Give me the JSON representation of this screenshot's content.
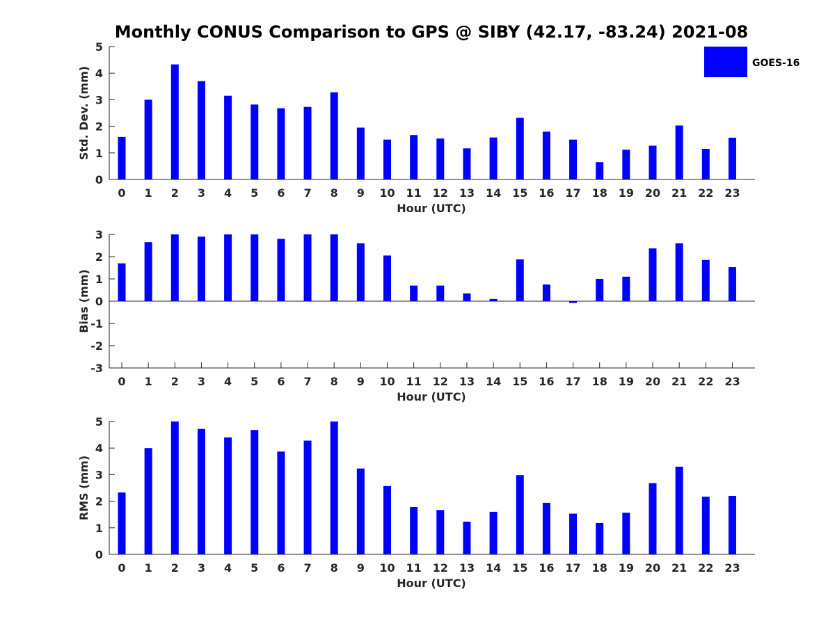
{
  "title": "Monthly CONUS Comparison to GPS @ SIBY (42.17, -83.24) 2021-08",
  "legend": {
    "label": "GOES-16",
    "color": "#0000ff",
    "placement": "top-right"
  },
  "chart_data": [
    {
      "type": "bar",
      "categories": [
        "0",
        "1",
        "2",
        "3",
        "4",
        "5",
        "6",
        "7",
        "8",
        "9",
        "10",
        "11",
        "12",
        "13",
        "14",
        "15",
        "16",
        "17",
        "18",
        "19",
        "20",
        "21",
        "22",
        "23"
      ],
      "series": [
        {
          "name": "GOES-16",
          "values": [
            1.6,
            3.0,
            4.33,
            3.7,
            3.15,
            2.82,
            2.68,
            2.73,
            3.28,
            1.95,
            1.5,
            1.67,
            1.54,
            1.17,
            1.58,
            2.32,
            1.8,
            1.5,
            0.65,
            1.12,
            1.27,
            2.03,
            1.15,
            1.57
          ]
        }
      ],
      "xlabel": "Hour (UTC)",
      "ylabel": "Std. Dev. (mm)",
      "ylim": [
        0,
        5
      ],
      "yticks": [
        "0",
        "1",
        "2",
        "3",
        "4",
        "5"
      ],
      "grid": false
    },
    {
      "type": "bar",
      "categories": [
        "0",
        "1",
        "2",
        "3",
        "4",
        "5",
        "6",
        "7",
        "8",
        "9",
        "10",
        "11",
        "12",
        "13",
        "14",
        "15",
        "16",
        "17",
        "18",
        "19",
        "20",
        "21",
        "22",
        "23"
      ],
      "series": [
        {
          "name": "GOES-16",
          "values": [
            1.7,
            2.65,
            3.0,
            2.9,
            3.0,
            3.0,
            2.8,
            3.0,
            3.0,
            2.6,
            2.05,
            0.7,
            0.7,
            0.35,
            0.1,
            1.88,
            0.75,
            -0.08,
            1.0,
            1.1,
            2.37,
            2.6,
            1.85,
            1.53
          ]
        }
      ],
      "xlabel": "Hour (UTC)",
      "ylabel": "Bias (mm)",
      "ylim": [
        -3,
        3
      ],
      "yticks": [
        "-3",
        "-2",
        "-1",
        "0",
        "1",
        "2",
        "3"
      ],
      "zero_line": true,
      "grid": false
    },
    {
      "type": "bar",
      "categories": [
        "0",
        "1",
        "2",
        "3",
        "4",
        "5",
        "6",
        "7",
        "8",
        "9",
        "10",
        "11",
        "12",
        "13",
        "14",
        "15",
        "16",
        "17",
        "18",
        "19",
        "20",
        "21",
        "22",
        "23"
      ],
      "series": [
        {
          "name": "GOES-16",
          "values": [
            2.33,
            4.0,
            5.0,
            4.72,
            4.4,
            4.68,
            3.87,
            4.28,
            5.0,
            3.23,
            2.57,
            1.78,
            1.67,
            1.23,
            1.6,
            2.98,
            1.94,
            1.53,
            1.18,
            1.57,
            2.68,
            3.3,
            2.17,
            2.2
          ]
        }
      ],
      "xlabel": "Hour (UTC)",
      "ylabel": "RMS (mm)",
      "ylim": [
        0,
        5
      ],
      "yticks": [
        "0",
        "1",
        "2",
        "3",
        "4",
        "5"
      ],
      "grid": false
    }
  ]
}
